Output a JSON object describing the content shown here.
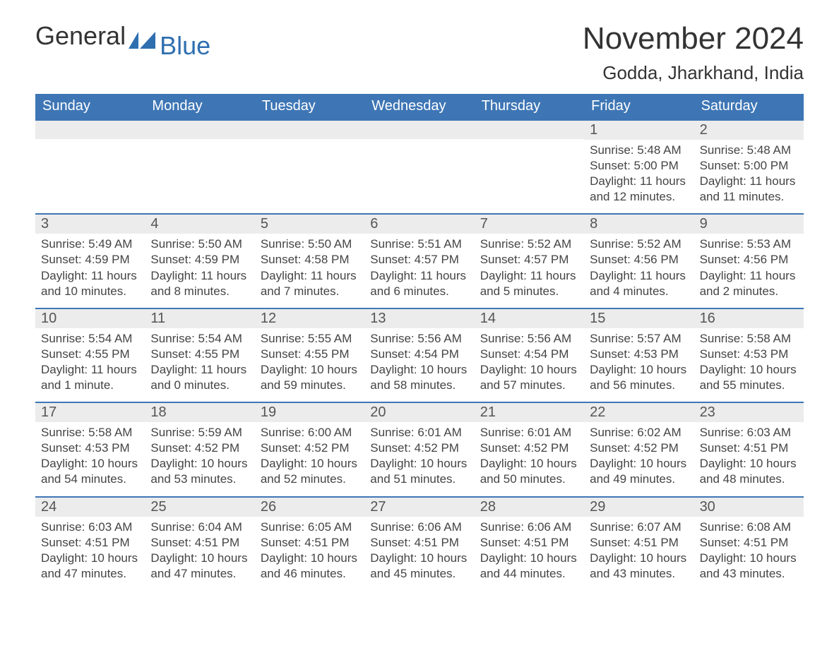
{
  "brand": {
    "general": "General",
    "blue": "Blue"
  },
  "colors": {
    "header_bg": "#3e76b5",
    "header_text": "#ffffff",
    "band_bg": "#ececec",
    "body_text": "#444444",
    "title_text": "#333333",
    "accent": "#2f6fb0",
    "page_bg": "#ffffff"
  },
  "fonts": {
    "family": "Arial, Helvetica, sans-serif",
    "month_title_pt": 44,
    "location_pt": 26,
    "weekday_pt": 20,
    "daynum_pt": 20,
    "body_pt": 17,
    "logo_pt": 36
  },
  "title": "November 2024",
  "location": "Godda, Jharkhand, India",
  "weekdays": [
    "Sunday",
    "Monday",
    "Tuesday",
    "Wednesday",
    "Thursday",
    "Friday",
    "Saturday"
  ],
  "weeks": [
    [
      {
        "empty": true
      },
      {
        "empty": true
      },
      {
        "empty": true
      },
      {
        "empty": true
      },
      {
        "empty": true
      },
      {
        "day": "1",
        "sunrise": "Sunrise: 5:48 AM",
        "sunset": "Sunset: 5:00 PM",
        "dl1": "Daylight: 11 hours",
        "dl2": "and 12 minutes."
      },
      {
        "day": "2",
        "sunrise": "Sunrise: 5:48 AM",
        "sunset": "Sunset: 5:00 PM",
        "dl1": "Daylight: 11 hours",
        "dl2": "and 11 minutes."
      }
    ],
    [
      {
        "day": "3",
        "sunrise": "Sunrise: 5:49 AM",
        "sunset": "Sunset: 4:59 PM",
        "dl1": "Daylight: 11 hours",
        "dl2": "and 10 minutes."
      },
      {
        "day": "4",
        "sunrise": "Sunrise: 5:50 AM",
        "sunset": "Sunset: 4:59 PM",
        "dl1": "Daylight: 11 hours",
        "dl2": "and 8 minutes."
      },
      {
        "day": "5",
        "sunrise": "Sunrise: 5:50 AM",
        "sunset": "Sunset: 4:58 PM",
        "dl1": "Daylight: 11 hours",
        "dl2": "and 7 minutes."
      },
      {
        "day": "6",
        "sunrise": "Sunrise: 5:51 AM",
        "sunset": "Sunset: 4:57 PM",
        "dl1": "Daylight: 11 hours",
        "dl2": "and 6 minutes."
      },
      {
        "day": "7",
        "sunrise": "Sunrise: 5:52 AM",
        "sunset": "Sunset: 4:57 PM",
        "dl1": "Daylight: 11 hours",
        "dl2": "and 5 minutes."
      },
      {
        "day": "8",
        "sunrise": "Sunrise: 5:52 AM",
        "sunset": "Sunset: 4:56 PM",
        "dl1": "Daylight: 11 hours",
        "dl2": "and 4 minutes."
      },
      {
        "day": "9",
        "sunrise": "Sunrise: 5:53 AM",
        "sunset": "Sunset: 4:56 PM",
        "dl1": "Daylight: 11 hours",
        "dl2": "and 2 minutes."
      }
    ],
    [
      {
        "day": "10",
        "sunrise": "Sunrise: 5:54 AM",
        "sunset": "Sunset: 4:55 PM",
        "dl1": "Daylight: 11 hours",
        "dl2": "and 1 minute."
      },
      {
        "day": "11",
        "sunrise": "Sunrise: 5:54 AM",
        "sunset": "Sunset: 4:55 PM",
        "dl1": "Daylight: 11 hours",
        "dl2": "and 0 minutes."
      },
      {
        "day": "12",
        "sunrise": "Sunrise: 5:55 AM",
        "sunset": "Sunset: 4:55 PM",
        "dl1": "Daylight: 10 hours",
        "dl2": "and 59 minutes."
      },
      {
        "day": "13",
        "sunrise": "Sunrise: 5:56 AM",
        "sunset": "Sunset: 4:54 PM",
        "dl1": "Daylight: 10 hours",
        "dl2": "and 58 minutes."
      },
      {
        "day": "14",
        "sunrise": "Sunrise: 5:56 AM",
        "sunset": "Sunset: 4:54 PM",
        "dl1": "Daylight: 10 hours",
        "dl2": "and 57 minutes."
      },
      {
        "day": "15",
        "sunrise": "Sunrise: 5:57 AM",
        "sunset": "Sunset: 4:53 PM",
        "dl1": "Daylight: 10 hours",
        "dl2": "and 56 minutes."
      },
      {
        "day": "16",
        "sunrise": "Sunrise: 5:58 AM",
        "sunset": "Sunset: 4:53 PM",
        "dl1": "Daylight: 10 hours",
        "dl2": "and 55 minutes."
      }
    ],
    [
      {
        "day": "17",
        "sunrise": "Sunrise: 5:58 AM",
        "sunset": "Sunset: 4:53 PM",
        "dl1": "Daylight: 10 hours",
        "dl2": "and 54 minutes."
      },
      {
        "day": "18",
        "sunrise": "Sunrise: 5:59 AM",
        "sunset": "Sunset: 4:52 PM",
        "dl1": "Daylight: 10 hours",
        "dl2": "and 53 minutes."
      },
      {
        "day": "19",
        "sunrise": "Sunrise: 6:00 AM",
        "sunset": "Sunset: 4:52 PM",
        "dl1": "Daylight: 10 hours",
        "dl2": "and 52 minutes."
      },
      {
        "day": "20",
        "sunrise": "Sunrise: 6:01 AM",
        "sunset": "Sunset: 4:52 PM",
        "dl1": "Daylight: 10 hours",
        "dl2": "and 51 minutes."
      },
      {
        "day": "21",
        "sunrise": "Sunrise: 6:01 AM",
        "sunset": "Sunset: 4:52 PM",
        "dl1": "Daylight: 10 hours",
        "dl2": "and 50 minutes."
      },
      {
        "day": "22",
        "sunrise": "Sunrise: 6:02 AM",
        "sunset": "Sunset: 4:52 PM",
        "dl1": "Daylight: 10 hours",
        "dl2": "and 49 minutes."
      },
      {
        "day": "23",
        "sunrise": "Sunrise: 6:03 AM",
        "sunset": "Sunset: 4:51 PM",
        "dl1": "Daylight: 10 hours",
        "dl2": "and 48 minutes."
      }
    ],
    [
      {
        "day": "24",
        "sunrise": "Sunrise: 6:03 AM",
        "sunset": "Sunset: 4:51 PM",
        "dl1": "Daylight: 10 hours",
        "dl2": "and 47 minutes."
      },
      {
        "day": "25",
        "sunrise": "Sunrise: 6:04 AM",
        "sunset": "Sunset: 4:51 PM",
        "dl1": "Daylight: 10 hours",
        "dl2": "and 47 minutes."
      },
      {
        "day": "26",
        "sunrise": "Sunrise: 6:05 AM",
        "sunset": "Sunset: 4:51 PM",
        "dl1": "Daylight: 10 hours",
        "dl2": "and 46 minutes."
      },
      {
        "day": "27",
        "sunrise": "Sunrise: 6:06 AM",
        "sunset": "Sunset: 4:51 PM",
        "dl1": "Daylight: 10 hours",
        "dl2": "and 45 minutes."
      },
      {
        "day": "28",
        "sunrise": "Sunrise: 6:06 AM",
        "sunset": "Sunset: 4:51 PM",
        "dl1": "Daylight: 10 hours",
        "dl2": "and 44 minutes."
      },
      {
        "day": "29",
        "sunrise": "Sunrise: 6:07 AM",
        "sunset": "Sunset: 4:51 PM",
        "dl1": "Daylight: 10 hours",
        "dl2": "and 43 minutes."
      },
      {
        "day": "30",
        "sunrise": "Sunrise: 6:08 AM",
        "sunset": "Sunset: 4:51 PM",
        "dl1": "Daylight: 10 hours",
        "dl2": "and 43 minutes."
      }
    ]
  ]
}
